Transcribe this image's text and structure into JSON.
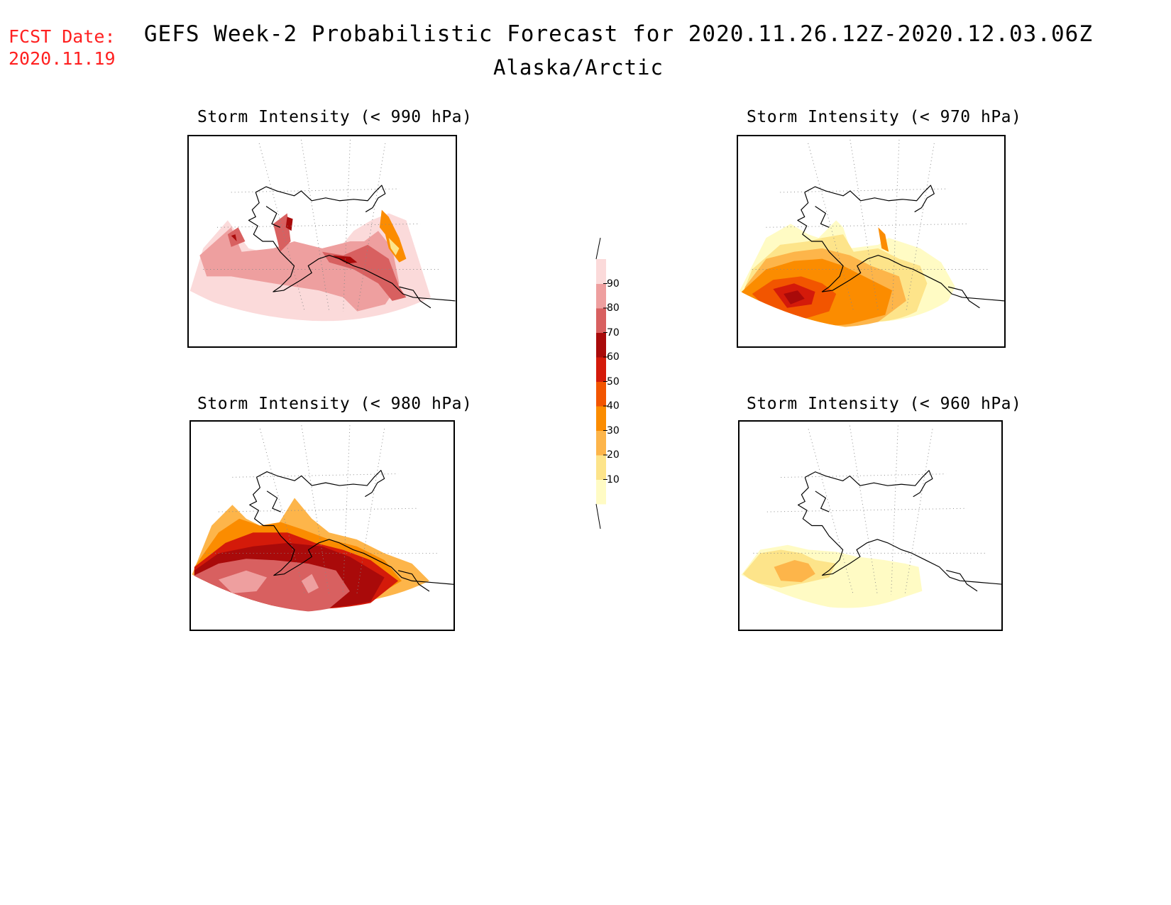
{
  "header": {
    "fcst_label": "FCST Date:",
    "fcst_date": "2020.11.19",
    "title": "GEFS Week-2 Probabilistic Forecast for 2020.11.26.12Z-2020.12.03.06Z",
    "subtitle": "Alaska/Arctic"
  },
  "panels": [
    {
      "title": "Storm Intensity (< 990 hPa)",
      "scheme": "high"
    },
    {
      "title": "Storm Intensity (< 970 hPa)",
      "scheme": "mid"
    },
    {
      "title": "Storm Intensity (< 980 hPa)",
      "scheme": "dense"
    },
    {
      "title": "Storm Intensity (< 960 hPa)",
      "scheme": "low"
    }
  ],
  "legend": {
    "levels": [
      "10",
      "20",
      "30",
      "40",
      "50",
      "60",
      "70",
      "80",
      "90"
    ],
    "colors": [
      "#fffbc4",
      "#fde48a",
      "#fdb54a",
      "#fb8c00",
      "#f25500",
      "#d41a0a",
      "#a90a0a",
      "#d86060",
      "#ee9f9f",
      "#fbdada"
    ]
  }
}
